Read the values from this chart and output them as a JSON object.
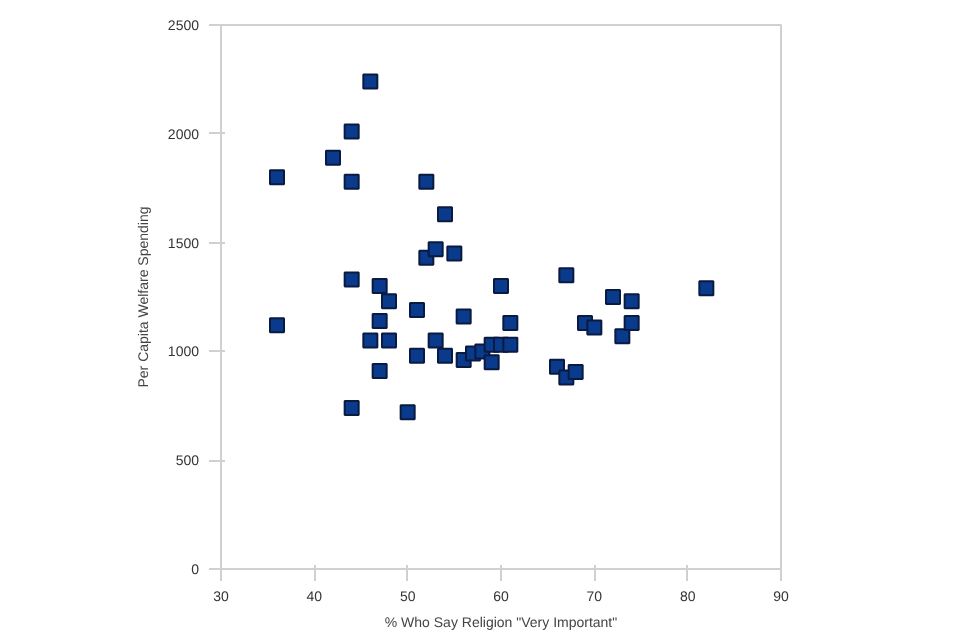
{
  "chart_data": {
    "type": "scatter",
    "xlabel": "% Who Say Religion \"Very Important\"",
    "ylabel": "Per Capita Welfare Spending",
    "x": [
      36,
      36,
      42,
      44,
      44,
      46,
      52,
      54,
      52,
      53,
      55,
      44,
      47,
      48,
      51,
      56,
      60,
      47,
      61,
      46,
      48,
      53,
      51,
      54,
      56,
      57,
      58,
      59,
      60,
      61,
      59,
      47,
      44,
      50,
      66,
      67,
      68,
      67,
      69,
      70,
      72,
      74,
      73,
      74,
      82
    ],
    "values": [
      1800,
      1120,
      1890,
      2010,
      1780,
      2240,
      1780,
      1630,
      1430,
      1470,
      1450,
      1330,
      1300,
      1230,
      1190,
      1160,
      1300,
      1140,
      1130,
      1050,
      1050,
      1050,
      980,
      980,
      960,
      990,
      1000,
      1030,
      1030,
      1030,
      950,
      910,
      740,
      720,
      930,
      880,
      905,
      1350,
      1130,
      1110,
      1250,
      1230,
      1070,
      1130,
      1290
    ],
    "color": "#0a3a8c",
    "marker": "square",
    "grid": false,
    "xlim": [
      30,
      90
    ],
    "xticks": [
      30,
      40,
      50,
      60,
      70,
      80,
      90
    ],
    "ylim": [
      0,
      2500
    ],
    "yticks": [
      0,
      500,
      1000,
      1500,
      2000,
      2500
    ]
  }
}
